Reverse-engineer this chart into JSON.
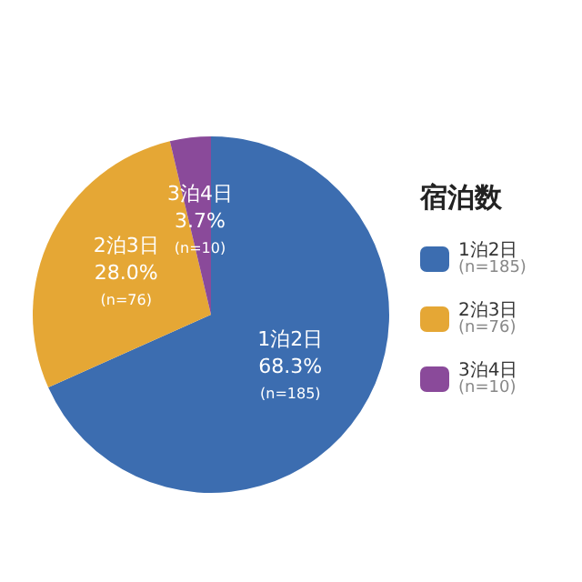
{
  "chart_data": {
    "type": "pie",
    "legend_title": "宿泊数",
    "legend": "right",
    "categories": [
      "1泊2日",
      "2泊3日",
      "3泊4日"
    ],
    "values": [
      68.3,
      28.0,
      3.7
    ],
    "colors": [
      "#3c6db0",
      "#e5a735",
      "#8a4a9a"
    ],
    "value_labels": [
      "68.3%\n(n=185)",
      "28.0%\n(n=76)",
      "3.7%\n(n=10)"
    ],
    "annotations": [
      "(n=185)",
      "(n=76)",
      "(n=10)"
    ]
  }
}
